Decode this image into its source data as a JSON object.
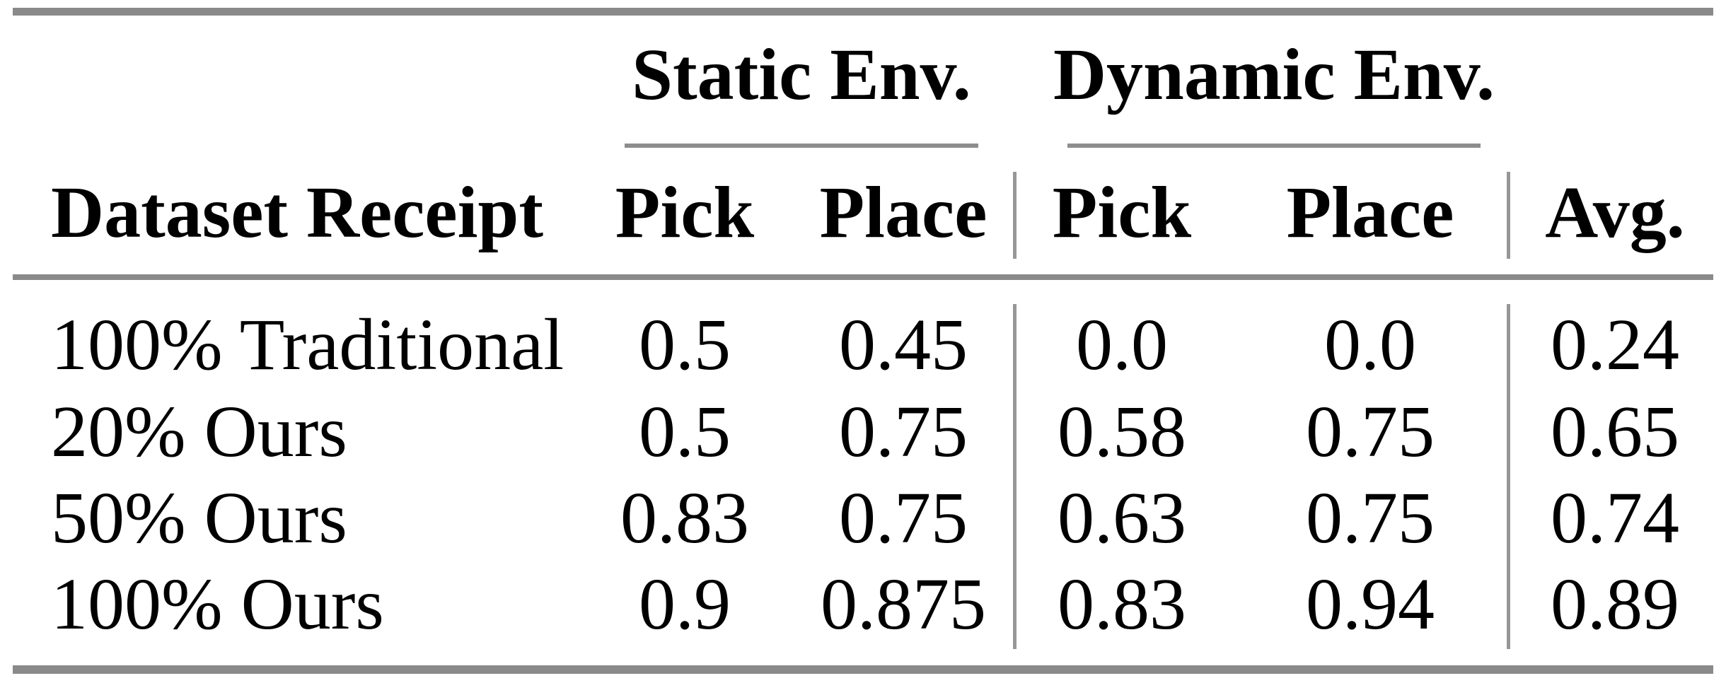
{
  "table": {
    "row_header_label": "Dataset Receipt",
    "groups": [
      {
        "label": "Static Env.",
        "columns": [
          "Pick",
          "Place"
        ]
      },
      {
        "label": "Dynamic Env.",
        "columns": [
          "Pick",
          "Place"
        ]
      }
    ],
    "avg_label": "Avg.",
    "rows": [
      {
        "label": "100% Traditional",
        "static_pick": "0.5",
        "static_place": "0.45",
        "dynamic_pick": "0.0",
        "dynamic_place": "0.0",
        "avg": "0.24"
      },
      {
        "label": "20% Ours",
        "static_pick": "0.5",
        "static_place": "0.75",
        "dynamic_pick": "0.58",
        "dynamic_place": "0.75",
        "avg": "0.65"
      },
      {
        "label": "50% Ours",
        "static_pick": "0.83",
        "static_place": "0.75",
        "dynamic_pick": "0.63",
        "dynamic_place": "0.75",
        "avg": "0.74"
      },
      {
        "label": "100% Ours",
        "static_pick": "0.9",
        "static_place": "0.875",
        "dynamic_pick": "0.83",
        "dynamic_place": "0.94",
        "avg": "0.89"
      }
    ],
    "colors": {
      "rule_heavy": "#8a8a8a",
      "rule_light": "#979797",
      "text": "#000000",
      "background": "#ffffff"
    }
  }
}
